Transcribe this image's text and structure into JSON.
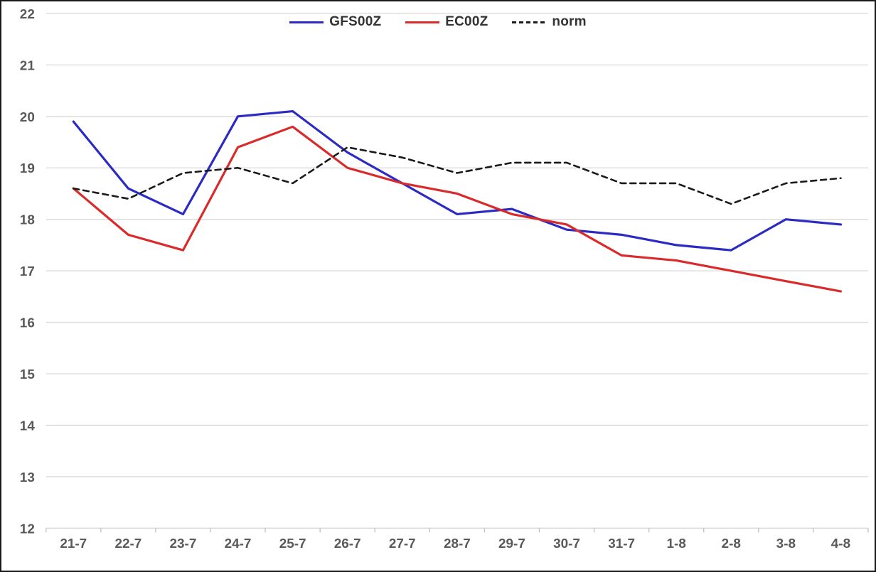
{
  "window": {
    "background": "#ffffff",
    "border_color": "#1a1a1a"
  },
  "chart_data": {
    "type": "line",
    "title": "",
    "xlabel": "",
    "ylabel": "",
    "categories": [
      "21-7",
      "22-7",
      "23-7",
      "24-7",
      "25-7",
      "26-7",
      "27-7",
      "28-7",
      "29-7",
      "30-7",
      "31-7",
      "1-8",
      "2-8",
      "3-8",
      "4-8"
    ],
    "series": [
      {
        "name": "GFS00Z",
        "color": "#2b2bc4",
        "style": "solid",
        "values": [
          19.9,
          18.6,
          18.1,
          20.0,
          20.1,
          19.3,
          18.7,
          18.1,
          18.2,
          17.8,
          17.7,
          17.5,
          17.4,
          18.0,
          17.9
        ]
      },
      {
        "name": "EC00Z",
        "color": "#d92b2b",
        "style": "solid",
        "values": [
          18.6,
          17.7,
          17.4,
          19.4,
          19.8,
          19.0,
          18.7,
          18.5,
          18.1,
          17.9,
          17.3,
          17.2,
          17.0,
          16.8,
          16.6
        ]
      },
      {
        "name": "norm",
        "color": "#1a1a1a",
        "style": "dashed",
        "values": [
          18.6,
          18.4,
          18.9,
          19.0,
          18.7,
          19.4,
          19.2,
          18.9,
          19.1,
          19.1,
          18.7,
          18.7,
          18.3,
          18.7,
          18.8
        ]
      }
    ],
    "ylim": [
      12,
      22
    ],
    "yticks": [
      12,
      13,
      14,
      15,
      16,
      17,
      18,
      19,
      20,
      21,
      22
    ],
    "grid": "horizontal",
    "legend_position": "top-center",
    "grid_color": "#d9d9d9",
    "axis_color": "#bfbfbf",
    "axis_label_color": "#595959"
  }
}
